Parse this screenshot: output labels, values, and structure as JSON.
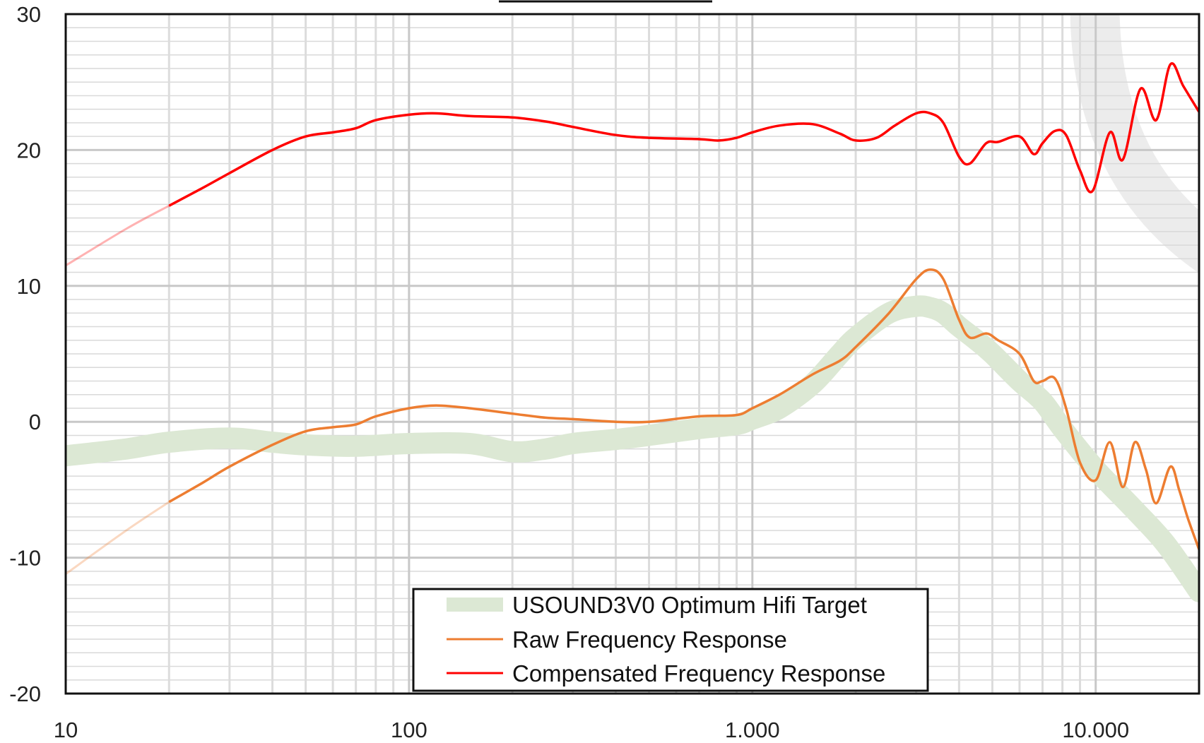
{
  "chart_data": {
    "type": "line",
    "title": "",
    "xlabel": "",
    "ylabel": "",
    "x_scale": "log",
    "xlim": [
      10,
      20000
    ],
    "ylim": [
      -20,
      30
    ],
    "grid": true,
    "legend_position": "bottom-center",
    "x_ticks": [
      {
        "value": 10,
        "label": "10"
      },
      {
        "value": 100,
        "label": "100"
      },
      {
        "value": 1000,
        "label": "1.000"
      },
      {
        "value": 10000,
        "label": "10.000"
      }
    ],
    "y_ticks": [
      {
        "value": 30,
        "label": "30"
      },
      {
        "value": 20,
        "label": "20"
      },
      {
        "value": 10,
        "label": "10"
      },
      {
        "value": 0,
        "label": "0"
      },
      {
        "value": -10,
        "label": "-10"
      },
      {
        "value": -20,
        "label": "-20"
      }
    ],
    "series": [
      {
        "name": "USOUND3V0 Optimum Hifi Target",
        "color": "#dce8d4",
        "style": "thick-band",
        "x": [
          10,
          15,
          20,
          30,
          40,
          50,
          70,
          100,
          150,
          200,
          250,
          300,
          400,
          500,
          700,
          900,
          1000,
          1200,
          1500,
          1800,
          2000,
          2500,
          3000,
          3300,
          3600,
          4000,
          4500,
          5000,
          6000,
          7000,
          8000,
          10000,
          13000,
          16000,
          20000
        ],
        "y": [
          -2.5,
          -2.0,
          -1.5,
          -1.2,
          -1.5,
          -1.7,
          -1.8,
          -1.6,
          -1.6,
          -2.2,
          -2.0,
          -1.6,
          -1.3,
          -1.0,
          -0.5,
          -0.2,
          0.2,
          1.0,
          2.8,
          5.0,
          6.2,
          8.0,
          8.5,
          8.4,
          8.0,
          7.0,
          6.0,
          5.0,
          3.0,
          1.5,
          -0.5,
          -3.5,
          -6.5,
          -9.0,
          -12.5
        ]
      },
      {
        "name": "Raw Frequency Response",
        "color": "#ed7d31",
        "style": "line",
        "faded_below": 20,
        "x": [
          10,
          15,
          20,
          25,
          30,
          40,
          50,
          60,
          70,
          80,
          100,
          120,
          150,
          200,
          250,
          300,
          400,
          500,
          700,
          900,
          1000,
          1200,
          1500,
          1800,
          2000,
          2500,
          3000,
          3300,
          3600,
          4000,
          4300,
          4800,
          5200,
          6000,
          6600,
          7000,
          7600,
          8200,
          9000,
          10000,
          11000,
          12000,
          13000,
          14000,
          15000,
          16500,
          17500,
          18500,
          20000
        ],
        "y": [
          -11.2,
          -8.0,
          -5.9,
          -4.5,
          -3.3,
          -1.7,
          -0.7,
          -0.4,
          -0.2,
          0.4,
          1.0,
          1.2,
          1.0,
          0.6,
          0.3,
          0.2,
          0.0,
          0.0,
          0.4,
          0.5,
          1.0,
          2.0,
          3.5,
          4.5,
          5.5,
          8.0,
          10.5,
          11.2,
          10.5,
          7.5,
          6.2,
          6.5,
          6.0,
          5.0,
          3.0,
          3.0,
          3.2,
          1.0,
          -3.0,
          -4.3,
          -1.5,
          -4.8,
          -1.5,
          -3.5,
          -6.0,
          -3.3,
          -5.0,
          -7.0,
          -9.4
        ]
      },
      {
        "name": "Compensated Frequency Response",
        "color": "#ff0000",
        "style": "line",
        "faded_below": 20,
        "x": [
          10,
          15,
          20,
          25,
          30,
          40,
          50,
          60,
          70,
          80,
          100,
          120,
          150,
          200,
          250,
          300,
          400,
          500,
          700,
          800,
          900,
          1000,
          1200,
          1500,
          1800,
          2000,
          2300,
          2600,
          3000,
          3300,
          3600,
          4000,
          4300,
          4800,
          5200,
          6000,
          6600,
          7000,
          7600,
          8200,
          9000,
          9800,
          11000,
          12000,
          13500,
          15000,
          16500,
          18000,
          20000
        ],
        "y": [
          11.5,
          14.2,
          15.9,
          17.2,
          18.3,
          20.0,
          21.0,
          21.3,
          21.6,
          22.2,
          22.6,
          22.7,
          22.5,
          22.4,
          22.1,
          21.7,
          21.1,
          20.9,
          20.8,
          20.7,
          20.9,
          21.3,
          21.8,
          21.9,
          21.2,
          20.7,
          20.9,
          21.8,
          22.7,
          22.7,
          22.0,
          19.5,
          19.0,
          20.5,
          20.6,
          21.0,
          19.7,
          20.5,
          21.4,
          21.1,
          18.5,
          17.0,
          21.3,
          19.3,
          24.5,
          22.2,
          26.3,
          24.7,
          22.8
        ]
      }
    ]
  }
}
